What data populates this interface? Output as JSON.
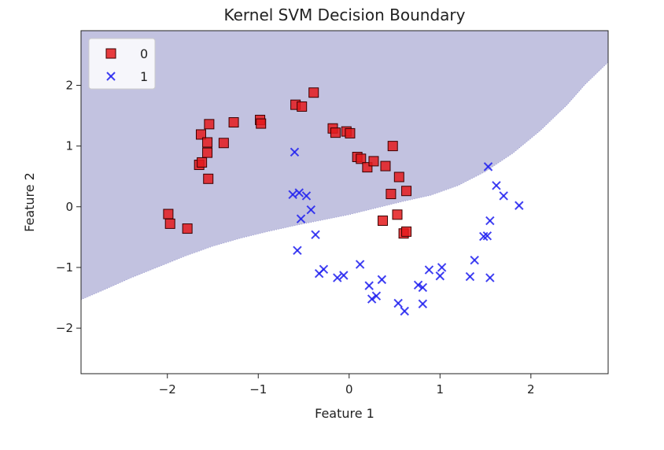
{
  "chart_data": {
    "type": "scatter",
    "title": "Kernel SVM Decision Boundary",
    "xlabel": "Feature 1",
    "ylabel": "Feature 2",
    "xlim": [
      -2.95,
      2.85
    ],
    "ylim": [
      -2.75,
      2.9
    ],
    "xticks": [
      -2,
      -1,
      0,
      1,
      2
    ],
    "yticks": [
      -2,
      -1,
      0,
      1,
      2
    ],
    "tick_labels_x": [
      "−2",
      "−1",
      "0",
      "1",
      "2"
    ],
    "tick_labels_y": [
      "−2",
      "−1",
      "0",
      "1",
      "2"
    ],
    "grid": false,
    "legend_position": "top-left",
    "region_color": "#c2c2e0",
    "boundary": {
      "description_class": "0",
      "x": [
        -2.95,
        -2.7,
        -2.4,
        -2.1,
        -1.8,
        -1.5,
        -1.2,
        -0.9,
        -0.6,
        -0.3,
        0.0,
        0.3,
        0.6,
        0.9,
        1.2,
        1.5,
        1.8,
        2.1,
        2.4,
        2.6,
        2.85
      ],
      "y": [
        -1.53,
        -1.37,
        -1.17,
        -0.99,
        -0.81,
        -0.65,
        -0.52,
        -0.41,
        -0.31,
        -0.22,
        -0.13,
        -0.02,
        0.09,
        0.19,
        0.35,
        0.58,
        0.88,
        1.25,
        1.68,
        2.02,
        2.38
      ]
    },
    "series": [
      {
        "name": "0",
        "marker": "square",
        "color": "#e41a1c",
        "edge_color": "#3a0000",
        "points": [
          [
            -1.99,
            -0.12
          ],
          [
            -1.97,
            -0.28
          ],
          [
            -1.78,
            -0.36
          ],
          [
            -1.65,
            0.69
          ],
          [
            -1.62,
            0.73
          ],
          [
            -1.63,
            1.19
          ],
          [
            -1.56,
            1.06
          ],
          [
            -1.56,
            0.89
          ],
          [
            -1.54,
            1.36
          ],
          [
            -1.55,
            0.46
          ],
          [
            -1.38,
            1.05
          ],
          [
            -1.27,
            1.39
          ],
          [
            -0.98,
            1.43
          ],
          [
            -0.97,
            1.37
          ],
          [
            -0.59,
            1.68
          ],
          [
            -0.52,
            1.65
          ],
          [
            -0.39,
            1.88
          ],
          [
            -0.18,
            1.29
          ],
          [
            -0.15,
            1.22
          ],
          [
            -0.03,
            1.24
          ],
          [
            0.01,
            1.21
          ],
          [
            0.09,
            0.82
          ],
          [
            0.13,
            0.79
          ],
          [
            0.2,
            0.65
          ],
          [
            0.27,
            0.75
          ],
          [
            0.4,
            0.67
          ],
          [
            0.48,
            1.0
          ],
          [
            0.46,
            0.21
          ],
          [
            0.55,
            0.49
          ],
          [
            0.63,
            0.26
          ],
          [
            0.37,
            -0.23
          ],
          [
            0.53,
            -0.13
          ],
          [
            0.6,
            -0.44
          ],
          [
            0.63,
            -0.41
          ]
        ]
      },
      {
        "name": "1",
        "marker": "x",
        "color": "#1f1ff0",
        "points": [
          [
            -0.6,
            0.9
          ],
          [
            -0.62,
            0.2
          ],
          [
            -0.55,
            0.23
          ],
          [
            -0.47,
            0.18
          ],
          [
            -0.53,
            -0.2
          ],
          [
            -0.42,
            -0.05
          ],
          [
            -0.37,
            -0.46
          ],
          [
            -0.57,
            -0.72
          ],
          [
            -0.33,
            -1.1
          ],
          [
            -0.28,
            -1.03
          ],
          [
            -0.13,
            -1.17
          ],
          [
            -0.06,
            -1.13
          ],
          [
            0.12,
            -0.95
          ],
          [
            0.22,
            -1.3
          ],
          [
            0.25,
            -1.52
          ],
          [
            0.3,
            -1.47
          ],
          [
            0.36,
            -1.2
          ],
          [
            0.54,
            -1.59
          ],
          [
            0.61,
            -1.72
          ],
          [
            0.76,
            -1.29
          ],
          [
            0.81,
            -1.33
          ],
          [
            0.81,
            -1.6
          ],
          [
            0.88,
            -1.04
          ],
          [
            1.0,
            -1.14
          ],
          [
            1.02,
            -1.0
          ],
          [
            1.33,
            -1.15
          ],
          [
            1.38,
            -0.88
          ],
          [
            1.48,
            -0.49
          ],
          [
            1.52,
            -0.48
          ],
          [
            1.55,
            -0.23
          ],
          [
            1.55,
            -1.17
          ],
          [
            1.53,
            0.66
          ],
          [
            1.62,
            0.35
          ],
          [
            1.7,
            0.18
          ],
          [
            1.87,
            0.02
          ]
        ]
      }
    ]
  }
}
